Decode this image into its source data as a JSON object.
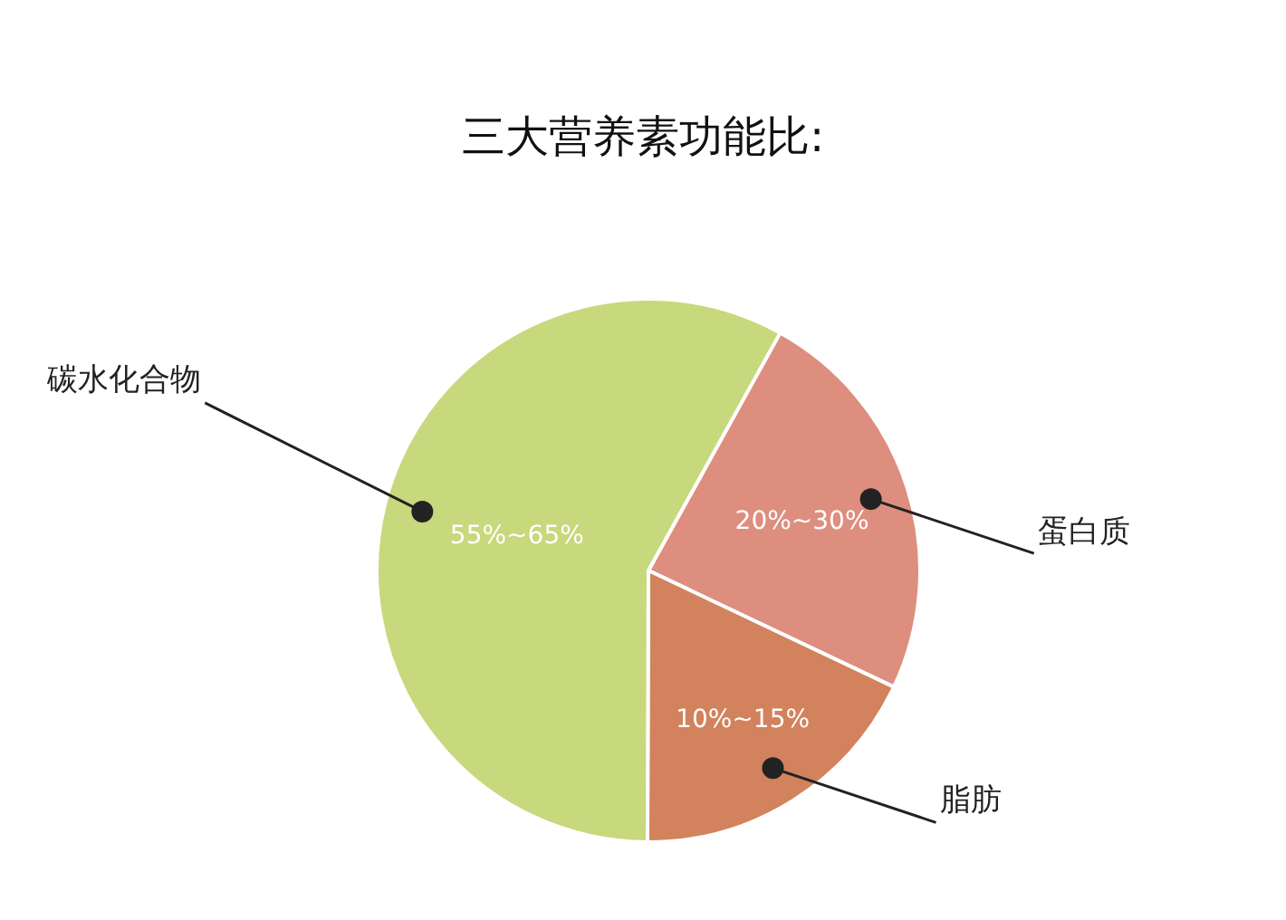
{
  "chart_data": {
    "type": "pie",
    "title": "三大营养素功能比:",
    "categories": [
      "蛋白质",
      "脂肪",
      "碳水化合物"
    ],
    "values": [
      24,
      18,
      58
    ],
    "annotations": [
      "20%~30%",
      "10%~15%",
      "55%~65%"
    ],
    "colors": [
      "#de8e7e",
      "#d2825c",
      "#c8d87c"
    ],
    "legend": false
  }
}
